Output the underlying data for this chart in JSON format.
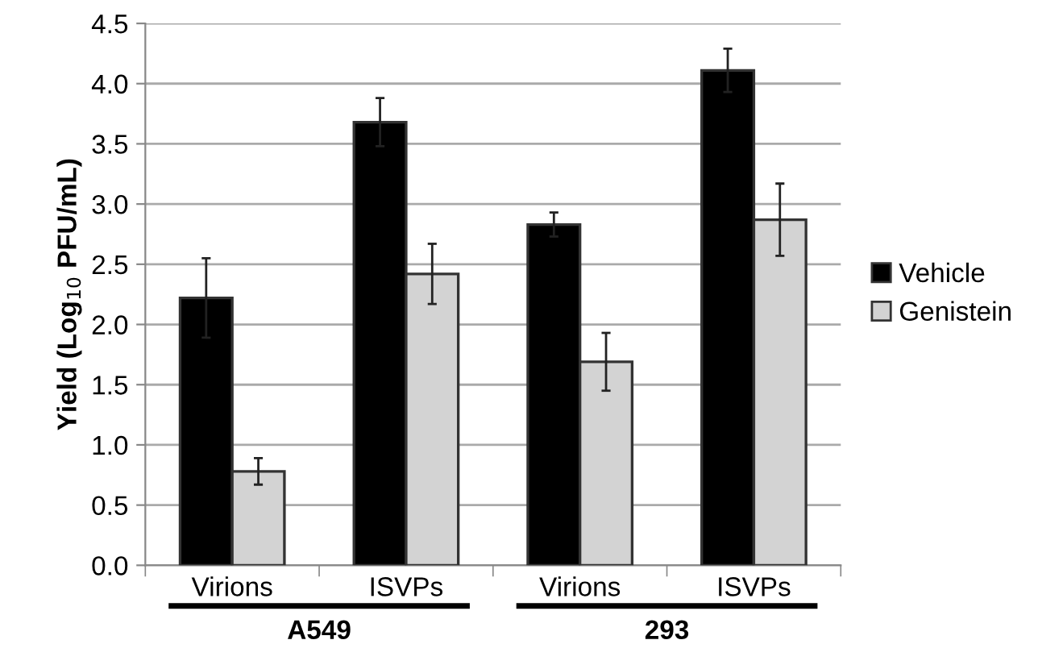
{
  "chart_data": {
    "type": "bar",
    "ylabel": "Yield (Log$_{10}$ PFU/mL)",
    "categories": [
      "Virions",
      "ISVPs",
      "Virions",
      "ISVPs"
    ],
    "series": [
      {
        "name": "Vehicle",
        "color": "#000000",
        "values": [
          2.22,
          3.68,
          2.83,
          4.11
        ],
        "errors": [
          0.33,
          0.2,
          0.1,
          0.18
        ]
      },
      {
        "name": "Genistein",
        "color": "#d3d3d3",
        "values": [
          0.78,
          2.42,
          1.69,
          2.87
        ],
        "errors": [
          0.11,
          0.25,
          0.24,
          0.3
        ]
      }
    ],
    "ylim": [
      0,
      4.5
    ],
    "yticks": [
      {
        "value": 0,
        "label": "0.0"
      },
      0.5,
      {
        "value": 1,
        "label": "1.0"
      },
      1.5,
      {
        "value": 2,
        "label": "2.0"
      },
      2.5,
      {
        "value": 3,
        "label": "3.0"
      },
      3.5,
      {
        "value": 4,
        "label": "4.0"
      },
      4.5
    ],
    "annotations": [
      "A549",
      "293"
    ],
    "grid": "y",
    "legend": "right"
  }
}
